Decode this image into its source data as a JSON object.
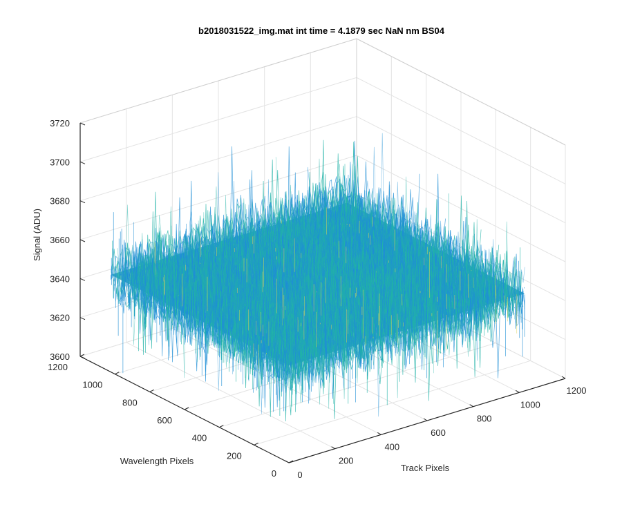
{
  "chart_data": {
    "type": "surface",
    "title": "b2018031522_img.mat int time = 4.1879 sec  NaN nm BS04",
    "xlabel": "Track Pixels",
    "ylabel": "Wavelength Pixels",
    "zlabel": "Signal (ADU)",
    "xlim": [
      0,
      1200
    ],
    "ylim": [
      0,
      1200
    ],
    "zlim": [
      3600,
      3720
    ],
    "x_ticks": [
      "0",
      "200",
      "400",
      "600",
      "800",
      "1000",
      "1200"
    ],
    "y_ticks": [
      "0",
      "200",
      "400",
      "600",
      "800",
      "1000",
      "1200"
    ],
    "z_ticks": [
      "3600",
      "3620",
      "3640",
      "3660",
      "3680",
      "3700",
      "3720"
    ],
    "surface_extent": {
      "x": [
        0,
        1024
      ],
      "y": [
        0,
        1024
      ]
    },
    "surface_mean": 3650,
    "surface_spread": [
      3610,
      3700
    ],
    "grid": true,
    "colormap": "parula",
    "colors": {
      "low": "#1f8fd6",
      "mid": "#22b3a8",
      "high": "#d8d35a"
    }
  }
}
